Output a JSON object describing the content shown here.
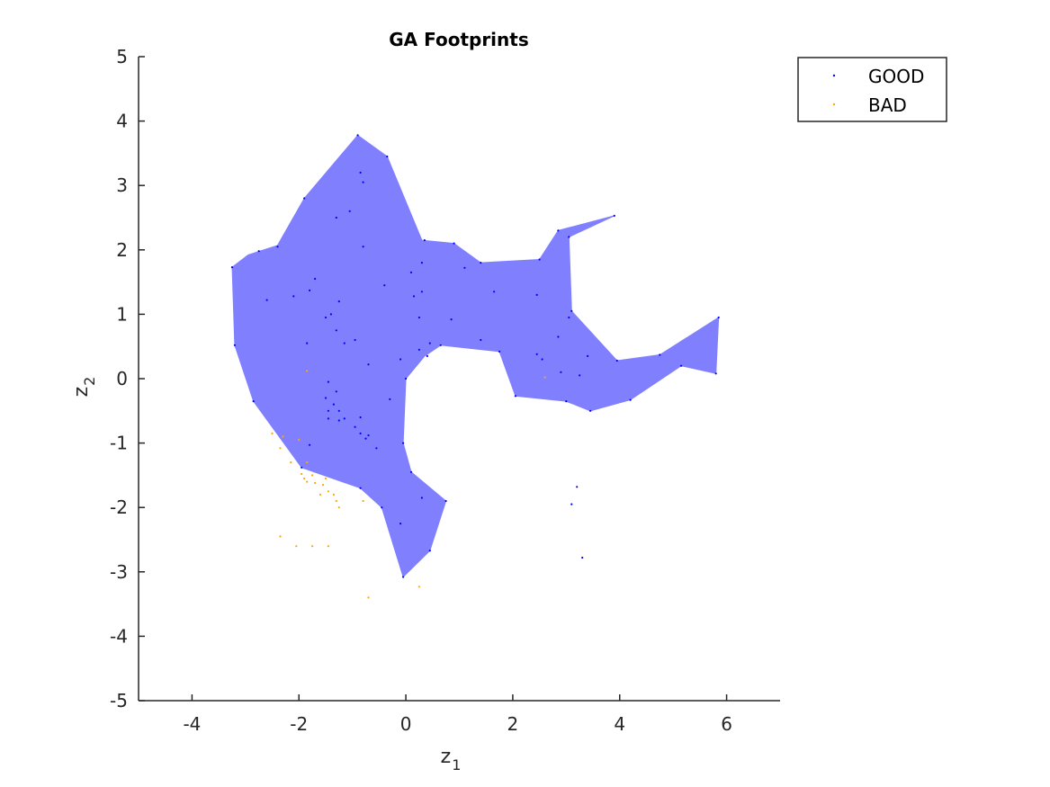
{
  "chart_data": {
    "type": "scatter",
    "title": "GA Footprints",
    "xlabel": {
      "main": "z",
      "sub": "1"
    },
    "ylabel": {
      "main": "z",
      "sub": "2"
    },
    "xlim": [
      -5,
      7
    ],
    "ylim": [
      -5,
      5
    ],
    "xticks": [
      -4,
      -2,
      0,
      2,
      4,
      6
    ],
    "yticks": [
      -5,
      -4,
      -3,
      -2,
      -1,
      0,
      1,
      2,
      3,
      4,
      5
    ],
    "grid": false,
    "legend_position": "top-right",
    "colors": {
      "good": "#0000ff",
      "bad": "#ffa500",
      "footprint": "#8080ff"
    },
    "footprint": {
      "polygon": [
        [
          -3.25,
          1.73
        ],
        [
          -2.95,
          1.92
        ],
        [
          -2.4,
          2.07
        ],
        [
          -1.9,
          2.8
        ],
        [
          -0.9,
          3.78
        ],
        [
          -0.35,
          3.45
        ],
        [
          0.3,
          2.15
        ],
        [
          0.9,
          2.1
        ],
        [
          1.4,
          1.8
        ],
        [
          2.5,
          1.85
        ],
        [
          2.85,
          2.3
        ],
        [
          3.9,
          2.53
        ],
        [
          3.05,
          2.2
        ],
        [
          3.1,
          1.05
        ],
        [
          3.95,
          0.28
        ],
        [
          4.75,
          0.37
        ],
        [
          5.85,
          0.95
        ],
        [
          5.8,
          0.08
        ],
        [
          5.15,
          0.2
        ],
        [
          4.2,
          -0.33
        ],
        [
          3.45,
          -0.5
        ],
        [
          3.0,
          -0.35
        ],
        [
          2.05,
          -0.27
        ],
        [
          1.75,
          0.42
        ],
        [
          0.65,
          0.52
        ],
        [
          0.35,
          0.35
        ],
        [
          0.0,
          0.0
        ],
        [
          -0.05,
          -1.0
        ],
        [
          0.1,
          -1.45
        ],
        [
          0.75,
          -1.9
        ],
        [
          0.45,
          -2.67
        ],
        [
          -0.05,
          -3.08
        ],
        [
          -0.45,
          -2.0
        ],
        [
          -0.85,
          -1.7
        ],
        [
          -1.95,
          -1.38
        ],
        [
          -2.85,
          -0.35
        ],
        [
          -3.2,
          0.52
        ]
      ]
    },
    "series": [
      {
        "name": "GOOD",
        "points": [
          [
            -3.25,
            1.73
          ],
          [
            -2.75,
            1.98
          ],
          [
            -2.4,
            2.05
          ],
          [
            -1.9,
            2.8
          ],
          [
            -0.9,
            3.78
          ],
          [
            -0.35,
            3.45
          ],
          [
            -0.85,
            3.2
          ],
          [
            -0.8,
            3.05
          ],
          [
            -1.3,
            2.5
          ],
          [
            -1.05,
            2.6
          ],
          [
            -0.8,
            2.05
          ],
          [
            0.35,
            2.15
          ],
          [
            0.9,
            2.1
          ],
          [
            1.1,
            1.72
          ],
          [
            1.4,
            1.8
          ],
          [
            2.5,
            1.85
          ],
          [
            2.85,
            2.3
          ],
          [
            3.9,
            2.53
          ],
          [
            3.05,
            2.2
          ],
          [
            3.1,
            1.05
          ],
          [
            3.95,
            0.28
          ],
          [
            4.75,
            0.37
          ],
          [
            5.85,
            0.95
          ],
          [
            5.8,
            0.08
          ],
          [
            5.15,
            0.2
          ],
          [
            4.2,
            -0.33
          ],
          [
            3.45,
            -0.5
          ],
          [
            3.0,
            -0.35
          ],
          [
            2.05,
            -0.27
          ],
          [
            -2.6,
            1.22
          ],
          [
            -2.1,
            1.28
          ],
          [
            -1.7,
            1.55
          ],
          [
            -1.8,
            1.37
          ],
          [
            -1.25,
            1.2
          ],
          [
            -0.4,
            1.45
          ],
          [
            0.1,
            1.65
          ],
          [
            0.3,
            1.8
          ],
          [
            0.15,
            1.28
          ],
          [
            0.3,
            1.35
          ],
          [
            0.25,
            0.95
          ],
          [
            0.85,
            0.92
          ],
          [
            1.65,
            1.35
          ],
          [
            2.45,
            1.3
          ],
          [
            2.85,
            0.65
          ],
          [
            3.05,
            0.95
          ],
          [
            1.4,
            0.6
          ],
          [
            1.75,
            0.42
          ],
          [
            2.45,
            0.38
          ],
          [
            2.55,
            0.3
          ],
          [
            2.9,
            0.1
          ],
          [
            3.25,
            0.05
          ],
          [
            3.4,
            0.35
          ],
          [
            -1.5,
            0.95
          ],
          [
            -1.4,
            1.0
          ],
          [
            -1.3,
            0.75
          ],
          [
            -1.15,
            0.55
          ],
          [
            -0.95,
            0.6
          ],
          [
            -1.85,
            0.55
          ],
          [
            -0.7,
            0.22
          ],
          [
            -0.1,
            0.3
          ],
          [
            0.25,
            0.45
          ],
          [
            0.4,
            0.35
          ],
          [
            0.45,
            0.55
          ],
          [
            0.65,
            0.52
          ],
          [
            0.0,
            0.0
          ],
          [
            -3.2,
            0.52
          ],
          [
            -2.85,
            -0.35
          ],
          [
            -1.45,
            -0.05
          ],
          [
            -1.3,
            -0.2
          ],
          [
            -1.5,
            -0.3
          ],
          [
            -1.35,
            -0.4
          ],
          [
            -1.25,
            -0.5
          ],
          [
            -1.45,
            -0.5
          ],
          [
            -1.15,
            -0.62
          ],
          [
            -1.25,
            -0.65
          ],
          [
            -1.45,
            -0.62
          ],
          [
            -0.85,
            -0.6
          ],
          [
            -0.95,
            -0.75
          ],
          [
            -0.85,
            -0.85
          ],
          [
            -0.7,
            -0.88
          ],
          [
            -0.75,
            -0.93
          ],
          [
            -0.55,
            -1.08
          ],
          [
            -0.3,
            -0.32
          ],
          [
            -0.05,
            -1.0
          ],
          [
            -1.8,
            -1.03
          ],
          [
            -1.95,
            -1.38
          ],
          [
            -0.85,
            -1.7
          ],
          [
            -0.45,
            -2.0
          ],
          [
            0.1,
            -1.45
          ],
          [
            0.3,
            -1.85
          ],
          [
            0.75,
            -1.9
          ],
          [
            0.45,
            -2.67
          ],
          [
            -0.05,
            -3.08
          ],
          [
            -0.1,
            -2.25
          ],
          [
            3.2,
            -1.68
          ],
          [
            3.1,
            -1.95
          ],
          [
            3.3,
            -2.78
          ]
        ]
      },
      {
        "name": "BAD",
        "points": [
          [
            -2.5,
            -0.85
          ],
          [
            -2.3,
            -0.9
          ],
          [
            -2.35,
            -1.08
          ],
          [
            -2.0,
            -0.95
          ],
          [
            -2.15,
            -1.3
          ],
          [
            -1.85,
            -1.3
          ],
          [
            -1.95,
            -1.48
          ],
          [
            -1.9,
            -1.55
          ],
          [
            -1.85,
            -1.6
          ],
          [
            -1.75,
            -1.5
          ],
          [
            -1.7,
            -1.62
          ],
          [
            -1.5,
            -1.55
          ],
          [
            -1.55,
            -1.65
          ],
          [
            -1.45,
            -1.75
          ],
          [
            -1.6,
            -1.8
          ],
          [
            -1.35,
            -1.8
          ],
          [
            -1.3,
            -1.9
          ],
          [
            -1.25,
            -2.0
          ],
          [
            -0.8,
            -1.9
          ],
          [
            -2.35,
            -2.45
          ],
          [
            -2.05,
            -2.6
          ],
          [
            -1.75,
            -2.6
          ],
          [
            -1.45,
            -2.6
          ],
          [
            -0.7,
            -3.4
          ],
          [
            0.25,
            -3.23
          ],
          [
            -1.85,
            0.12
          ],
          [
            2.6,
            0.02
          ]
        ]
      }
    ]
  }
}
